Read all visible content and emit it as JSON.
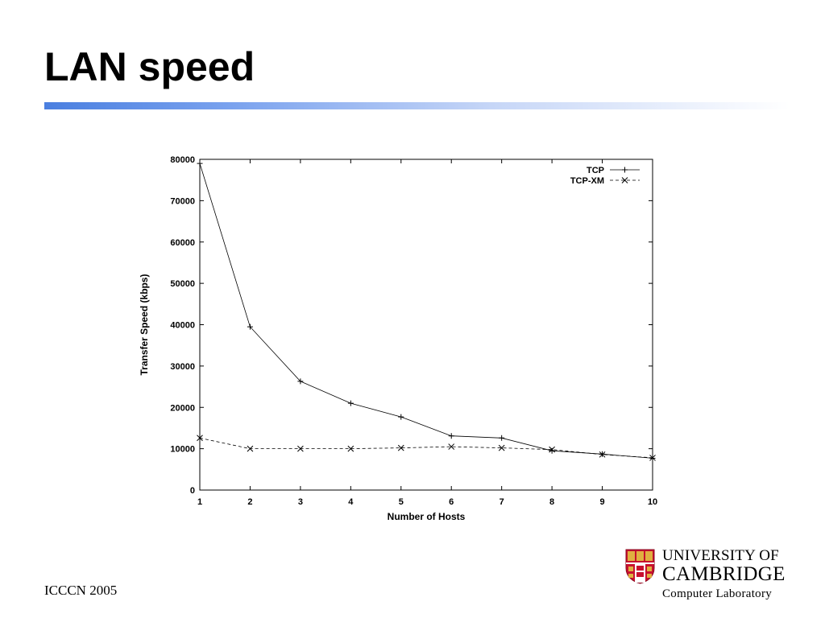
{
  "slide": {
    "title": "LAN speed",
    "footer": "ICCCN 2005"
  },
  "logo": {
    "line1": "UNIVERSITY OF",
    "line2": "CAMBRIDGE",
    "line3": "Computer  Laboratory",
    "icon": "cambridge-shield-icon"
  },
  "chart_data": {
    "type": "line",
    "title": "",
    "xlabel": "Number of Hosts",
    "ylabel": "Transfer Speed (kbps)",
    "x": [
      1,
      2,
      3,
      4,
      5,
      6,
      7,
      8,
      9,
      10
    ],
    "xlim": [
      1,
      10
    ],
    "ylim": [
      0,
      80000
    ],
    "x_ticks": [
      "1",
      "2",
      "3",
      "4",
      "5",
      "6",
      "7",
      "8",
      "9",
      "10"
    ],
    "y_ticks": [
      "0",
      "10000",
      "20000",
      "30000",
      "40000",
      "50000",
      "60000",
      "70000",
      "80000"
    ],
    "grid": false,
    "legend_position": "top-right",
    "series": [
      {
        "name": "TCP",
        "marker": "+",
        "line_style": "solid",
        "values": [
          79000,
          39500,
          26300,
          21000,
          17700,
          13100,
          12600,
          9500,
          8700,
          7700
        ]
      },
      {
        "name": "TCP-XM",
        "marker": "x",
        "line_style": "dashed",
        "values": [
          12600,
          10000,
          10000,
          10000,
          10200,
          10500,
          10200,
          9800,
          8600,
          7800
        ]
      }
    ],
    "colors": {
      "line": "#000000",
      "axis": "#000000"
    }
  }
}
